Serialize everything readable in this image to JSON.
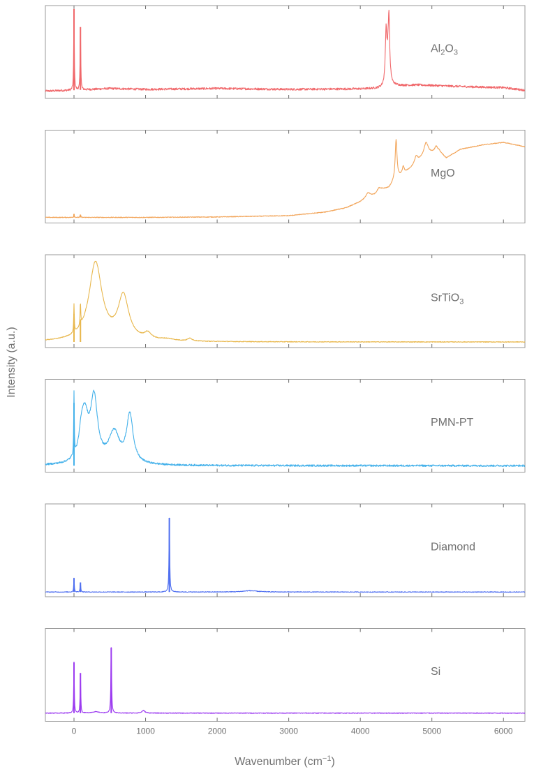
{
  "chart_data": {
    "type": "line",
    "layout": "stacked-panels",
    "grid": false,
    "legend": "none",
    "ylabel": "Intensity (a.u.)",
    "xlabel_parts": [
      "Wavenumber (cm",
      "−1",
      ")"
    ],
    "xlim": [
      -400,
      6300
    ],
    "ylim": [
      0,
      1
    ],
    "x_ticks": [
      0,
      1000,
      2000,
      3000,
      4000,
      5000,
      6000
    ],
    "x_tick_labels": [
      "0",
      "1000",
      "2000",
      "3000",
      "4000",
      "5000",
      "6000"
    ],
    "panels": [
      {
        "label_parts": [
          {
            "t": "Al"
          },
          {
            "t": "2",
            "sub": true
          },
          {
            "t": "O"
          },
          {
            "t": "3",
            "sub": true
          }
        ],
        "color": "#f0676a",
        "noise": 0.012,
        "base": 0.08,
        "points": [
          [
            -400,
            0.06
          ],
          [
            0,
            0.07
          ],
          [
            500,
            0.09
          ],
          [
            1000,
            0.08
          ],
          [
            2000,
            0.09
          ],
          [
            3000,
            0.08
          ],
          [
            4000,
            0.085
          ],
          [
            4300,
            0.09
          ],
          [
            4500,
            0.12
          ],
          [
            4800,
            0.13
          ],
          [
            5500,
            0.11
          ],
          [
            6000,
            0.1
          ],
          [
            6300,
            0.07
          ]
        ],
        "peaks": [
          [
            0,
            0.95,
            5
          ],
          [
            90,
            0.72,
            5
          ],
          [
            4360,
            0.55,
            12
          ],
          [
            4400,
            0.65,
            12
          ],
          [
            4385,
            0.25,
            25
          ]
        ]
      },
      {
        "label_parts": [
          {
            "t": "MgO"
          }
        ],
        "color": "#f2a55a",
        "noise": 0.004,
        "base": 0.04,
        "points": [
          [
            -400,
            0.04
          ],
          [
            1000,
            0.04
          ],
          [
            2000,
            0.045
          ],
          [
            3000,
            0.06
          ],
          [
            3500,
            0.1
          ],
          [
            3800,
            0.15
          ],
          [
            4000,
            0.22
          ],
          [
            4100,
            0.28
          ],
          [
            4200,
            0.3
          ],
          [
            4300,
            0.36
          ],
          [
            4400,
            0.38
          ],
          [
            4500,
            0.48
          ],
          [
            4700,
            0.6
          ],
          [
            4900,
            0.75
          ],
          [
            5100,
            0.8
          ],
          [
            5200,
            0.72
          ],
          [
            5400,
            0.82
          ],
          [
            5700,
            0.87
          ],
          [
            6000,
            0.9
          ],
          [
            6300,
            0.85
          ]
        ],
        "peaks": [
          [
            0,
            0.04,
            5
          ],
          [
            90,
            0.03,
            5
          ],
          [
            4500,
            0.45,
            15
          ],
          [
            4600,
            0.08,
            15
          ],
          [
            4780,
            0.08,
            25
          ],
          [
            4920,
            0.14,
            35
          ],
          [
            5060,
            0.06,
            25
          ],
          [
            4110,
            0.04,
            30
          ],
          [
            4260,
            0.04,
            30
          ]
        ]
      },
      {
        "label_parts": [
          {
            "t": "SrTiO"
          },
          {
            "t": "3",
            "sub": true
          }
        ],
        "color": "#e8b74c",
        "noise": 0.004,
        "base": 0.04,
        "points": [
          [
            -400,
            0.04
          ],
          [
            6300,
            0.04
          ]
        ],
        "peaks": [
          [
            0,
            0.32,
            5
          ],
          [
            90,
            0.26,
            5
          ],
          [
            300,
            0.9,
            110
          ],
          [
            690,
            0.5,
            90
          ],
          [
            1030,
            0.07,
            60
          ],
          [
            1620,
            0.03,
            40
          ],
          [
            1300,
            0.02,
            120
          ]
        ]
      },
      {
        "label_parts": [
          {
            "t": "PMN-PT"
          }
        ],
        "color": "#44b1ea",
        "noise": 0.01,
        "base": 0.05,
        "points": [
          [
            -400,
            0.05
          ],
          [
            6300,
            0.05
          ]
        ],
        "peaks": [
          [
            0,
            0.72,
            5
          ],
          [
            150,
            0.5,
            60
          ],
          [
            280,
            0.72,
            60
          ],
          [
            560,
            0.35,
            90
          ],
          [
            780,
            0.55,
            55
          ],
          [
            100,
            0.2,
            40
          ]
        ]
      },
      {
        "label_parts": [
          {
            "t": "Diamond"
          }
        ],
        "color": "#4f6ff0",
        "noise": 0.004,
        "base": 0.03,
        "points": [
          [
            -400,
            0.03
          ],
          [
            6300,
            0.03
          ]
        ],
        "peaks": [
          [
            0,
            0.16,
            5
          ],
          [
            90,
            0.11,
            5
          ],
          [
            1332,
            0.85,
            6
          ],
          [
            2460,
            0.015,
            120
          ]
        ]
      },
      {
        "label_parts": [
          {
            "t": "Si"
          }
        ],
        "color": "#9c3bf0",
        "noise": 0.004,
        "base": 0.07,
        "points": [
          [
            -400,
            0.07
          ],
          [
            6300,
            0.07
          ]
        ],
        "peaks": [
          [
            0,
            0.58,
            5
          ],
          [
            90,
            0.46,
            5
          ],
          [
            520,
            0.75,
            6
          ],
          [
            970,
            0.03,
            25
          ],
          [
            300,
            0.015,
            60
          ]
        ]
      }
    ]
  }
}
